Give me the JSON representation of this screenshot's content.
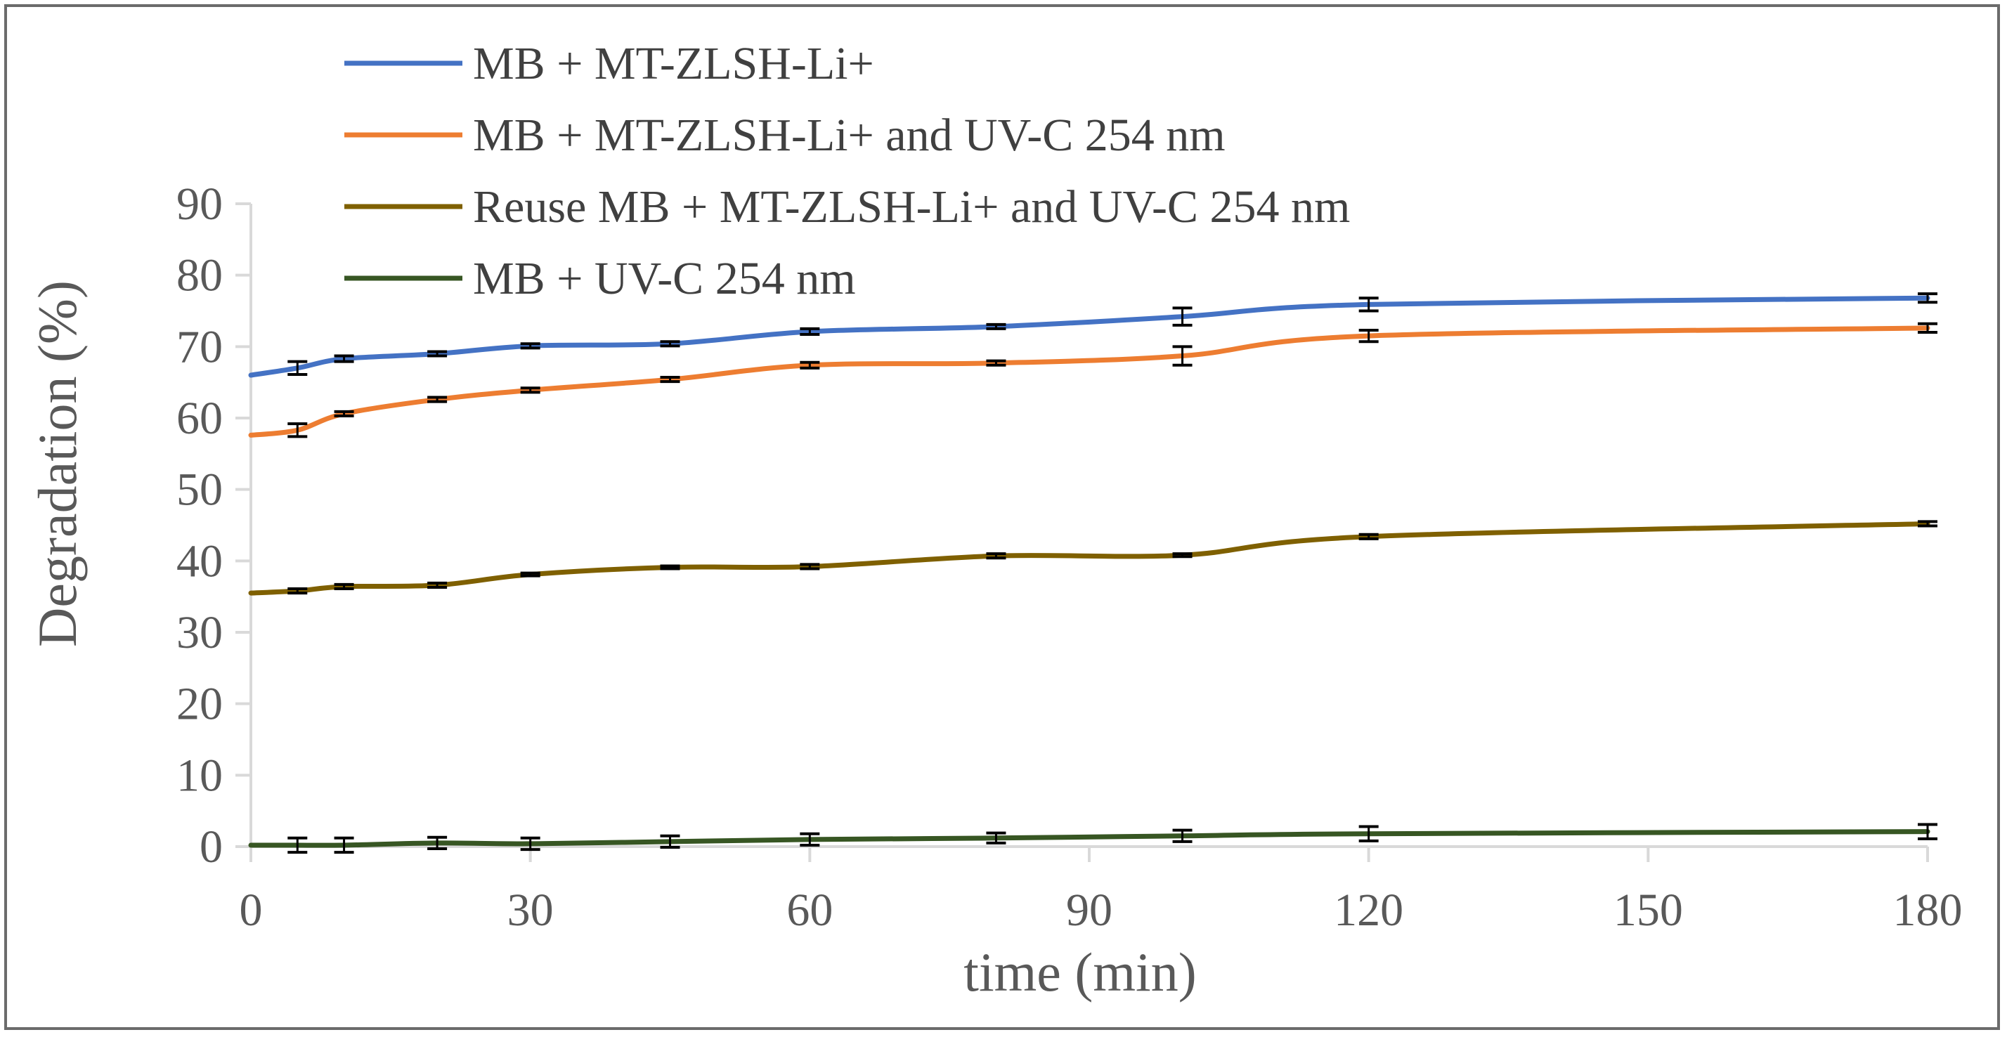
{
  "chart_data": {
    "type": "line",
    "title": "",
    "xlabel": "time (min)",
    "ylabel": "Degradation (%)",
    "xlim": [
      0,
      180
    ],
    "ylim": [
      0,
      90
    ],
    "x_ticks": [
      0,
      30,
      60,
      90,
      120,
      150,
      180
    ],
    "y_ticks": [
      0,
      10,
      20,
      30,
      40,
      50,
      60,
      70,
      80,
      90
    ],
    "grid": false,
    "legend_position": "top-left",
    "series": [
      {
        "name": "MB + MT-ZLSH-Li+",
        "color": "#4472c4",
        "x": [
          0,
          5,
          10,
          20,
          30,
          45,
          60,
          80,
          100,
          120,
          180
        ],
        "values": [
          66.0,
          67.0,
          68.3,
          69.0,
          70.1,
          70.4,
          72.1,
          72.8,
          74.2,
          75.9,
          76.8
        ],
        "error": [
          0,
          0.9,
          0.4,
          0.3,
          0.3,
          0.3,
          0.4,
          0.3,
          1.2,
          0.9,
          0.6
        ]
      },
      {
        "name": "MB + MT-ZLSH-Li+ and UV-C 254 nm",
        "color": "#ed7d31",
        "x": [
          0,
          5,
          10,
          20,
          30,
          45,
          60,
          80,
          100,
          120,
          180
        ],
        "values": [
          57.6,
          58.3,
          60.6,
          62.6,
          63.9,
          65.4,
          67.4,
          67.7,
          68.7,
          71.5,
          72.6
        ],
        "error": [
          0,
          0.9,
          0.3,
          0.3,
          0.3,
          0.3,
          0.4,
          0.3,
          1.3,
          0.8,
          0.6
        ]
      },
      {
        "name": "Reuse MB + MT-ZLSH-Li+ and UV-C 254 nm",
        "color": "#7f6000",
        "x": [
          0,
          5,
          10,
          20,
          30,
          45,
          60,
          80,
          100,
          120,
          180
        ],
        "values": [
          35.5,
          35.8,
          36.4,
          36.6,
          38.1,
          39.1,
          39.2,
          40.7,
          40.8,
          43.4,
          45.2
        ],
        "error": [
          0,
          0.3,
          0.3,
          0.3,
          0.2,
          0.2,
          0.3,
          0.3,
          0.2,
          0.3,
          0.3
        ]
      },
      {
        "name": "MB + UV-C 254 nm",
        "color": "#375623",
        "x": [
          0,
          5,
          10,
          20,
          30,
          45,
          60,
          80,
          100,
          120,
          180
        ],
        "values": [
          0.2,
          0.2,
          0.2,
          0.5,
          0.4,
          0.7,
          1.0,
          1.2,
          1.5,
          1.8,
          2.1
        ],
        "error": [
          0,
          1.0,
          1.0,
          0.8,
          0.8,
          0.8,
          0.8,
          0.7,
          0.8,
          1.0,
          1.0
        ]
      }
    ]
  }
}
